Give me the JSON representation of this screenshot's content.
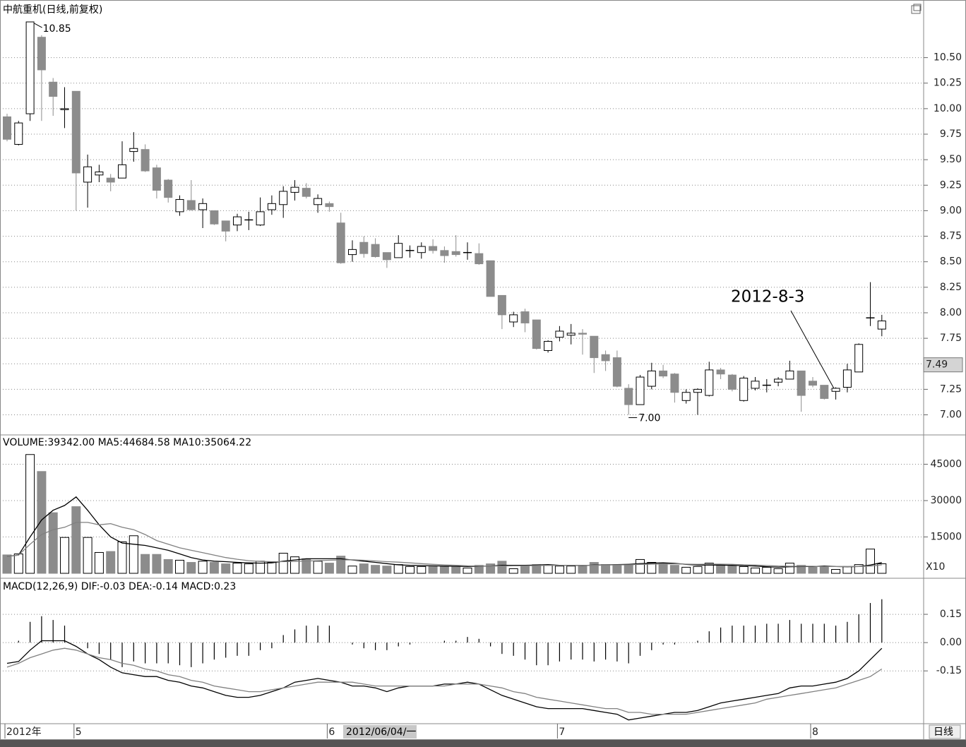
{
  "chart_data": [
    {
      "type": "candlestick",
      "title": "中航重机(日线,前复权)",
      "categories": [
        "2012年",
        null,
        null,
        null,
        null,
        null,
        "5",
        null,
        null,
        null,
        null,
        null,
        null,
        null,
        null,
        null,
        null,
        null,
        null,
        null,
        null,
        null,
        null,
        null,
        null,
        null,
        null,
        null,
        "6",
        null,
        null,
        null,
        null,
        null,
        null,
        null,
        null,
        null,
        null,
        null,
        null,
        null,
        null,
        null,
        null,
        null,
        null,
        null,
        "7",
        null,
        null,
        null,
        null,
        null,
        null,
        null,
        null,
        null,
        null,
        null,
        null,
        null,
        null,
        null,
        null,
        null,
        null,
        null,
        null,
        null,
        "8",
        null,
        null,
        null,
        null,
        null,
        null
      ],
      "open": [
        9.92,
        9.65,
        9.95,
        10.7,
        10.26,
        9.99,
        10.17,
        9.28,
        9.35,
        9.32,
        9.32,
        9.58,
        9.6,
        9.42,
        9.3,
        8.99,
        9.1,
        9.01,
        9.0,
        8.9,
        8.86,
        8.91,
        8.86,
        9.01,
        9.06,
        9.18,
        9.22,
        9.06,
        9.07,
        8.88,
        8.57,
        8.69,
        8.67,
        8.59,
        8.54,
        8.61,
        8.59,
        8.65,
        8.61,
        8.6,
        8.59,
        8.58,
        8.51,
        8.17,
        7.91,
        8.01,
        7.93,
        7.63,
        7.76,
        7.78,
        7.8,
        7.77,
        7.59,
        7.56,
        7.26,
        7.1,
        7.28,
        7.43,
        7.4,
        7.14,
        7.22,
        7.19,
        7.44,
        7.39,
        7.14,
        7.26,
        7.29,
        7.32,
        7.35,
        7.43,
        7.33,
        7.29,
        7.23,
        7.27,
        7.42,
        7.95,
        7.84
      ],
      "high": [
        9.95,
        9.88,
        10.85,
        10.72,
        10.3,
        10.21,
        10.17,
        9.55,
        9.45,
        9.36,
        9.68,
        9.77,
        9.65,
        9.45,
        9.31,
        9.15,
        9.3,
        9.12,
        9.0,
        8.9,
        8.97,
        8.99,
        9.13,
        9.15,
        9.24,
        9.3,
        9.27,
        9.16,
        9.09,
        8.98,
        8.71,
        8.75,
        8.73,
        8.59,
        8.76,
        8.66,
        8.69,
        8.72,
        8.65,
        8.76,
        8.69,
        8.68,
        8.51,
        8.17,
        8.01,
        8.04,
        7.93,
        7.73,
        7.87,
        7.89,
        7.84,
        7.77,
        7.63,
        7.63,
        7.3,
        7.39,
        7.51,
        7.49,
        7.41,
        7.25,
        7.26,
        7.52,
        7.46,
        7.4,
        7.38,
        7.37,
        7.35,
        7.37,
        7.53,
        7.43,
        7.37,
        7.29,
        7.27,
        7.5,
        7.7,
        8.3,
        7.98
      ],
      "low": [
        9.68,
        9.64,
        9.88,
        9.88,
        9.93,
        9.81,
        9.0,
        9.03,
        9.28,
        9.19,
        9.32,
        9.48,
        9.38,
        9.12,
        9.08,
        8.95,
        9.0,
        8.83,
        8.86,
        8.7,
        8.8,
        8.81,
        8.85,
        8.96,
        8.93,
        9.1,
        9.12,
        8.98,
        8.99,
        8.48,
        8.5,
        8.54,
        8.54,
        8.44,
        8.54,
        8.54,
        8.53,
        8.58,
        8.49,
        8.55,
        8.52,
        8.47,
        8.16,
        7.84,
        7.86,
        7.81,
        7.64,
        7.61,
        7.72,
        7.69,
        7.59,
        7.41,
        7.43,
        7.27,
        7.0,
        7.1,
        7.25,
        7.36,
        7.12,
        7.11,
        7.0,
        7.18,
        7.35,
        7.23,
        7.13,
        7.24,
        7.22,
        7.28,
        7.35,
        7.03,
        7.27,
        7.15,
        7.15,
        7.22,
        7.42,
        7.87,
        7.77
      ],
      "close": [
        9.7,
        9.86,
        10.85,
        10.38,
        10.12,
        10.0,
        9.37,
        9.43,
        9.38,
        9.28,
        9.45,
        9.61,
        9.39,
        9.2,
        9.13,
        9.11,
        9.01,
        9.07,
        8.87,
        8.8,
        8.94,
        8.91,
        8.99,
        9.07,
        9.19,
        9.23,
        9.14,
        9.12,
        9.04,
        8.49,
        8.62,
        8.58,
        8.55,
        8.52,
        8.68,
        8.61,
        8.65,
        8.61,
        8.56,
        8.57,
        8.59,
        8.48,
        8.16,
        7.98,
        7.98,
        7.9,
        7.65,
        7.72,
        7.82,
        7.8,
        7.79,
        7.56,
        7.53,
        7.28,
        7.1,
        7.37,
        7.43,
        7.38,
        7.22,
        7.22,
        7.25,
        7.44,
        7.4,
        7.25,
        7.36,
        7.33,
        7.29,
        7.35,
        7.43,
        7.19,
        7.29,
        7.16,
        7.26,
        7.44,
        7.69,
        7.95,
        7.92
      ],
      "up_color": "#000000",
      "down_color": "#8c8c8c",
      "ylim": [
        6.81,
        11.03
      ],
      "yticks": [
        {
          "value": 7,
          "label": "7.00"
        },
        {
          "value": 7.25,
          "label": "7.25"
        },
        {
          "value": 7.5,
          "label": "7.50"
        },
        {
          "value": 7.75,
          "label": "7.75"
        },
        {
          "value": 8,
          "label": "8.00"
        },
        {
          "value": 8.25,
          "label": "8.25"
        },
        {
          "value": 8.5,
          "label": "8.50"
        },
        {
          "value": 8.75,
          "label": "8.75"
        },
        {
          "value": 9,
          "label": "9.00"
        },
        {
          "value": 9.25,
          "label": "9.25"
        },
        {
          "value": 9.5,
          "label": "9.50"
        },
        {
          "value": 9.75,
          "label": "9.75"
        },
        {
          "value": 10,
          "label": "10.00"
        },
        {
          "value": 10.25,
          "label": "10.25"
        },
        {
          "value": 10.5,
          "label": "10.50"
        }
      ],
      "grid": true,
      "high_label": 10.85,
      "low_label": {
        "value": 7,
        "label": "7.00"
      },
      "last_price": 7.49,
      "annotation": "2012-8-3",
      "x_cursor_label": "2012/06/04/一",
      "period_label": "日线"
    },
    {
      "type": "bar",
      "title": "VOLUME:39342.00 MA5:44684.58 MA10:35064.22",
      "values": [
        7600,
        8000,
        49000,
        42000,
        25000,
        14800,
        27500,
        14800,
        8600,
        9000,
        13000,
        15500,
        7800,
        7800,
        5700,
        5400,
        4500,
        5000,
        4500,
        3900,
        4200,
        3900,
        5000,
        4500,
        8300,
        6800,
        6000,
        5000,
        4200,
        7100,
        3000,
        3900,
        3300,
        3000,
        3600,
        2800,
        2800,
        3000,
        2800,
        2800,
        2200,
        3300,
        3900,
        5000,
        1900,
        3000,
        3600,
        3300,
        3000,
        3000,
        3000,
        4500,
        3600,
        3600,
        3600,
        5700,
        4500,
        3900,
        3300,
        2500,
        2800,
        4200,
        3600,
        3000,
        2800,
        2200,
        2500,
        1900,
        4200,
        3300,
        2500,
        2800,
        1600,
        2800,
        3600,
        10000,
        3934.2
      ],
      "series": [
        {
          "name": "MA5",
          "color": "#000000",
          "values": [
            7000,
            7500,
            15000,
            22000,
            26000,
            28000,
            31500,
            26000,
            20000,
            15000,
            12500,
            12000,
            11500,
            10500,
            9500,
            8000,
            6500,
            5500,
            5000,
            4800,
            4500,
            4300,
            4200,
            4300,
            5000,
            5500,
            6000,
            6000,
            6000,
            6000,
            5500,
            5000,
            4500,
            4000,
            3500,
            3300,
            3200,
            3100,
            3000,
            2900,
            2800,
            2900,
            3000,
            3300,
            3300,
            3300,
            3400,
            3600,
            3300,
            3300,
            3200,
            3400,
            3500,
            3600,
            3700,
            4000,
            4200,
            4300,
            4100,
            3700,
            3400,
            3400,
            3400,
            3300,
            3200,
            3000,
            2700,
            2500,
            2700,
            2800,
            2800,
            3000,
            2800,
            2700,
            2800,
            3400,
            4468.458
          ]
        },
        {
          "name": "MA10",
          "color": "#808080",
          "values": [
            7000,
            7500,
            12000,
            16000,
            18000,
            19000,
            21000,
            21000,
            20000,
            20500,
            19000,
            18000,
            16000,
            13500,
            12000,
            10500,
            9500,
            8500,
            7500,
            6500,
            5800,
            5200,
            4900,
            4800,
            4800,
            4900,
            5100,
            5200,
            5400,
            5500,
            5600,
            5400,
            5100,
            4800,
            4600,
            4300,
            4000,
            3700,
            3500,
            3300,
            3100,
            3000,
            3000,
            3000,
            3100,
            3100,
            3200,
            3300,
            3300,
            3300,
            3300,
            3300,
            3400,
            3500,
            3500,
            3700,
            3800,
            3800,
            3900,
            3800,
            3700,
            3800,
            3800,
            3700,
            3500,
            3400,
            3200,
            3000,
            2900,
            2900,
            2900,
            2800,
            2800,
            2800,
            2800,
            3000,
            3506.422
          ]
        }
      ],
      "ylim": [
        0,
        56500
      ],
      "yticks": [
        15000,
        30000,
        45000
      ],
      "grid": true,
      "unit_label": "X10"
    },
    {
      "type": "macd",
      "title": "MACD(12,26,9) DIF:-0.03 DEA:-0.14 MACD:0.23",
      "values": [
        0,
        0.01,
        0.11,
        0.14,
        0.12,
        0.09,
        0,
        -0.03,
        -0.06,
        -0.09,
        -0.13,
        -0.1,
        -0.11,
        -0.11,
        -0.11,
        -0.12,
        -0.13,
        -0.11,
        -0.09,
        -0.08,
        -0.07,
        -0.07,
        -0.04,
        -0.03,
        0.04,
        0.07,
        0.09,
        0.09,
        0.09,
        0,
        -0.01,
        -0.03,
        -0.04,
        -0.04,
        -0.02,
        -0.01,
        0,
        0,
        0.01,
        0.01,
        0.03,
        0.02,
        -0.02,
        -0.06,
        -0.07,
        -0.09,
        -0.12,
        -0.12,
        -0.1,
        -0.09,
        -0.09,
        -0.1,
        -0.09,
        -0.1,
        -0.11,
        -0.07,
        -0.04,
        -0.01,
        -0.01,
        0,
        0.01,
        0.06,
        0.08,
        0.09,
        0.09,
        0.09,
        0.1,
        0.1,
        0.12,
        0.1,
        0.1,
        0.1,
        0.09,
        0.11,
        0.15,
        0.21,
        0.23
      ],
      "color": "#000000",
      "series": [
        {
          "name": "DIF",
          "color": "#000000",
          "values": [
            -0.11,
            -0.1,
            -0.04,
            0.01,
            0.01,
            0.01,
            -0.02,
            -0.06,
            -0.09,
            -0.13,
            -0.16,
            -0.17,
            -0.18,
            -0.18,
            -0.2,
            -0.21,
            -0.23,
            -0.24,
            -0.26,
            -0.28,
            -0.29,
            -0.29,
            -0.28,
            -0.26,
            -0.24,
            -0.21,
            -0.2,
            -0.19,
            -0.2,
            -0.21,
            -0.23,
            -0.23,
            -0.24,
            -0.26,
            -0.24,
            -0.23,
            -0.23,
            -0.23,
            -0.22,
            -0.22,
            -0.21,
            -0.22,
            -0.25,
            -0.28,
            -0.3,
            -0.32,
            -0.34,
            -0.35,
            -0.35,
            -0.35,
            -0.35,
            -0.36,
            -0.37,
            -0.38,
            -0.41,
            -0.4,
            -0.39,
            -0.38,
            -0.37,
            -0.37,
            -0.36,
            -0.34,
            -0.32,
            -0.31,
            -0.3,
            -0.29,
            -0.28,
            -0.27,
            -0.24,
            -0.23,
            -0.23,
            -0.22,
            -0.21,
            -0.19,
            -0.15,
            -0.09,
            -0.03
          ]
        },
        {
          "name": "DEA",
          "color": "#808080",
          "values": [
            -0.13,
            -0.11,
            -0.08,
            -0.06,
            -0.04,
            -0.03,
            -0.04,
            -0.06,
            -0.08,
            -0.09,
            -0.11,
            -0.12,
            -0.14,
            -0.15,
            -0.17,
            -0.18,
            -0.2,
            -0.21,
            -0.23,
            -0.24,
            -0.25,
            -0.26,
            -0.26,
            -0.25,
            -0.24,
            -0.23,
            -0.22,
            -0.21,
            -0.21,
            -0.21,
            -0.21,
            -0.22,
            -0.23,
            -0.23,
            -0.23,
            -0.23,
            -0.23,
            -0.23,
            -0.23,
            -0.22,
            -0.22,
            -0.22,
            -0.23,
            -0.24,
            -0.26,
            -0.27,
            -0.29,
            -0.3,
            -0.31,
            -0.32,
            -0.33,
            -0.34,
            -0.35,
            -0.35,
            -0.37,
            -0.37,
            -0.38,
            -0.38,
            -0.38,
            -0.38,
            -0.37,
            -0.36,
            -0.35,
            -0.34,
            -0.33,
            -0.32,
            -0.3,
            -0.29,
            -0.28,
            -0.27,
            -0.26,
            -0.25,
            -0.24,
            -0.22,
            -0.2,
            -0.18,
            -0.14
          ]
        }
      ],
      "ylim": [
        -0.43,
        0.33
      ],
      "yticks": [
        0.15,
        {
          "value": 0,
          "label": "0.00"
        },
        -0.15
      ],
      "grid": true
    }
  ]
}
